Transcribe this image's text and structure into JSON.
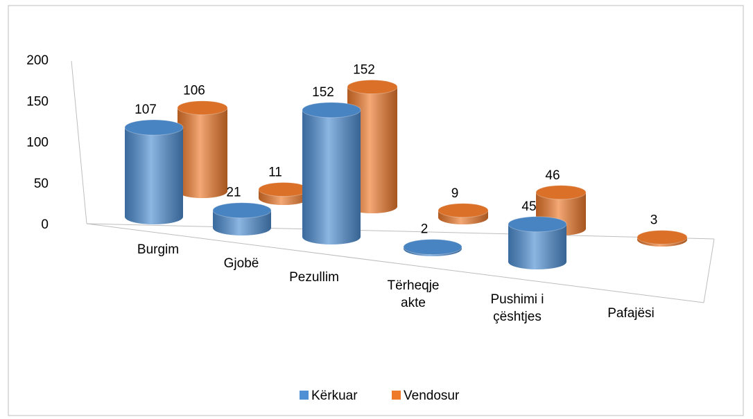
{
  "chart_data": {
    "type": "bar3d",
    "categories": [
      "Burgim",
      "Gjobë",
      "Pezullim",
      "Tërheqje akte",
      "Pushimi i çështjes",
      "Pafajësi"
    ],
    "series": [
      {
        "name": "Kërkuar",
        "color": "#4f8fd3",
        "values": [
          107,
          21,
          152,
          2,
          45,
          null
        ]
      },
      {
        "name": "Vendosur",
        "color": "#ee7a2c",
        "values": [
          106,
          11,
          152,
          9,
          46,
          3
        ]
      }
    ],
    "ylim": [
      0,
      200
    ],
    "yticks": [
      0,
      50,
      100,
      150,
      200
    ],
    "legend": "bottom"
  }
}
